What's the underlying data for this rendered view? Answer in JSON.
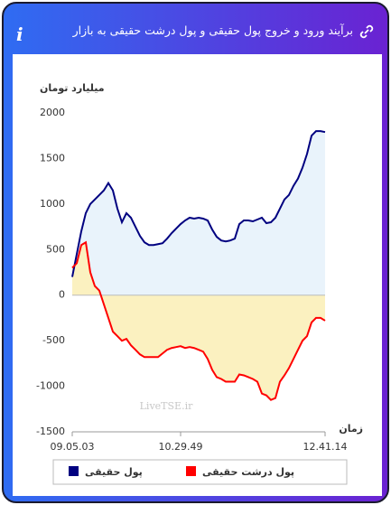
{
  "title": "برآیند ورود و خروج پول حقیقی و پول درشت حقیقی به بازار",
  "chart_data": {
    "type": "area",
    "y_label": "میلیارد تومان",
    "x_label": "زمان",
    "watermark": "LiveTSE.ir",
    "categories": [
      "09.05.03",
      null,
      null,
      null,
      null,
      null,
      null,
      null,
      null,
      null,
      null,
      null,
      null,
      null,
      null,
      null,
      null,
      null,
      null,
      null,
      null,
      null,
      null,
      null,
      "10.29.49",
      null,
      null,
      null,
      null,
      null,
      null,
      null,
      null,
      null,
      null,
      null,
      null,
      null,
      null,
      null,
      null,
      null,
      null,
      null,
      null,
      null,
      null,
      null,
      null,
      null,
      null,
      null,
      null,
      null,
      null,
      null,
      "12.41.14"
    ],
    "series": [
      {
        "name": "پول حقیقی",
        "color": "#000080",
        "fill": "#e9f3fb",
        "values": [
          200,
          450,
          700,
          900,
          1000,
          1050,
          1100,
          1150,
          1230,
          1150,
          950,
          800,
          900,
          850,
          750,
          650,
          580,
          550,
          550,
          560,
          570,
          620,
          680,
          730,
          780,
          820,
          850,
          840,
          850,
          840,
          820,
          720,
          640,
          600,
          590,
          600,
          620,
          780,
          820,
          820,
          810,
          830,
          850,
          790,
          800,
          850,
          950,
          1050,
          1100,
          1200,
          1280,
          1400,
          1550,
          1750,
          1800,
          1800,
          1790
        ]
      },
      {
        "name": "پول درشت حقیقی",
        "color": "#ff0000",
        "fill": "#fbf1c0",
        "values": [
          300,
          350,
          550,
          580,
          250,
          100,
          50,
          -100,
          -250,
          -400,
          -450,
          -500,
          -480,
          -550,
          -600,
          -650,
          -680,
          -680,
          -680,
          -680,
          -640,
          -600,
          -580,
          -570,
          -560,
          -580,
          -570,
          -580,
          -600,
          -620,
          -700,
          -820,
          -900,
          -920,
          -950,
          -950,
          -950,
          -870,
          -880,
          -900,
          -920,
          -950,
          -1080,
          -1100,
          -1150,
          -1130,
          -950,
          -880,
          -800,
          -700,
          -600,
          -500,
          -450,
          -300,
          -250,
          -250,
          -280
        ]
      }
    ],
    "ylim": [
      -1500,
      2000
    ],
    "yticks": [
      -1500,
      -1000,
      -500,
      0,
      500,
      1000,
      1500,
      2000
    ],
    "grid": false
  }
}
